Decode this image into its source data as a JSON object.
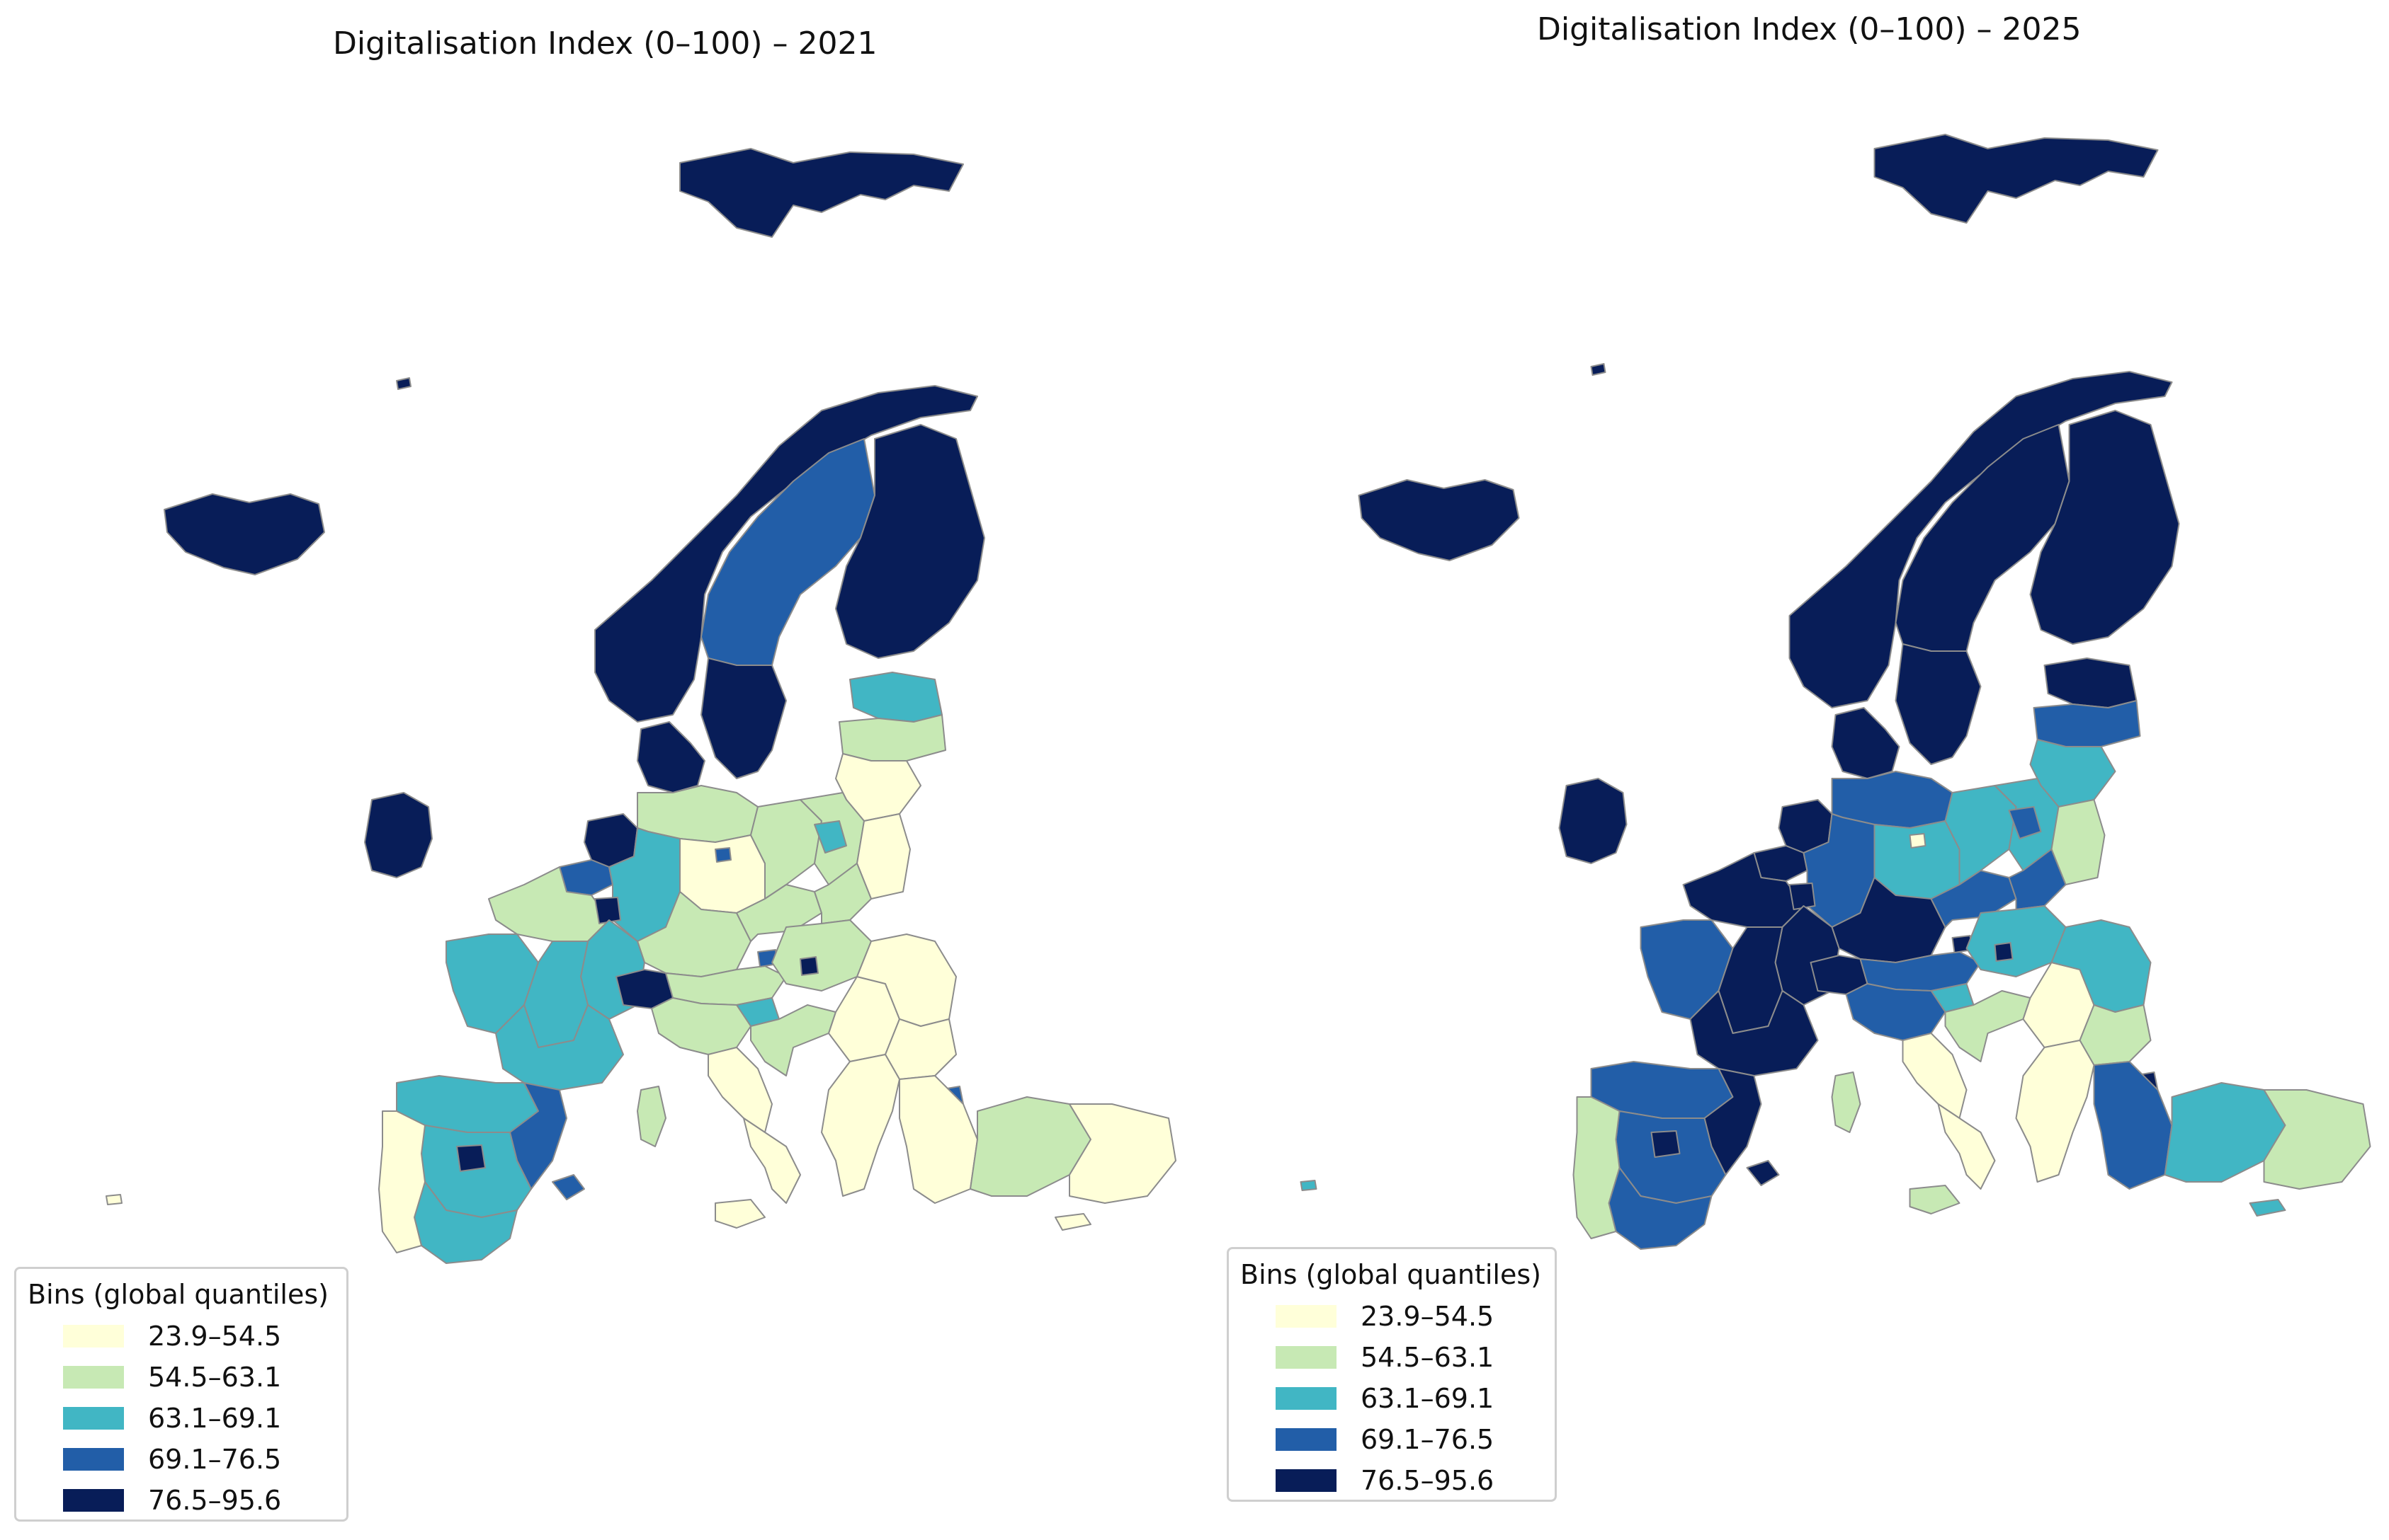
{
  "palette": {
    "bin1": "#ffffd9",
    "bin2": "#c7e9b4",
    "bin3": "#41b6c4",
    "bin4": "#225ea8",
    "bin5": "#081d58",
    "border": "#8c8c8c"
  },
  "legend": {
    "title": "Bins (global quantiles)",
    "bins": [
      {
        "label": "23.9–54.5",
        "color": "#ffffd9"
      },
      {
        "label": "54.5–63.1",
        "color": "#c7e9b4"
      },
      {
        "label": "63.1–69.1",
        "color": "#41b6c4"
      },
      {
        "label": "69.1–76.5",
        "color": "#225ea8"
      },
      {
        "label": "76.5–95.6",
        "color": "#081d58"
      }
    ]
  },
  "maps": [
    {
      "title": "Digitalisation Index (0–100) – 2021",
      "regions": {
        "svalbard": 5,
        "iceland": 5,
        "norway": 5,
        "sweden": 4,
        "sweden_south": 5,
        "finland": 5,
        "estonia": 3,
        "latvia": 2,
        "lithuania": 1,
        "denmark": 5,
        "ireland": 5,
        "netherlands": 5,
        "belgium": 4,
        "germany_north": 2,
        "germany_west": 3,
        "germany_east": 1,
        "germany_south": 2,
        "berlin": 4,
        "poland_west": 2,
        "poland_central": 2,
        "warsaw": 3,
        "poland_east": 1,
        "france_north": 2,
        "paris": 5,
        "france_east": 3,
        "france_west": 3,
        "france_central": 3,
        "france_south": 3,
        "switzerland": 5,
        "austria": 2,
        "vienna": 4,
        "czechia": 2,
        "slovakia": 2,
        "hungary": 2,
        "budapest": 5,
        "slovenia": 3,
        "croatia": 2,
        "italy_north": 2,
        "italy_central": 1,
        "italy_south": 1,
        "sardinia": 2,
        "sicily": 1,
        "spain_north": 3,
        "spain_central": 3,
        "madrid": 5,
        "catalonia": 4,
        "spain_south": 3,
        "balearics": 4,
        "portugal": 1,
        "romania": 1,
        "bulgaria": 1,
        "serbia": 1,
        "greece": 1,
        "turkey_west": 1,
        "turkey_central": 2,
        "turkey_east": 1,
        "istanbul": 4,
        "cyprus": 1,
        "faroe": 5,
        "azores": 1
      }
    },
    {
      "title": "Digitalisation Index (0–100) – 2025",
      "regions": {
        "svalbard": 5,
        "iceland": 5,
        "norway": 5,
        "sweden": 5,
        "sweden_south": 5,
        "finland": 5,
        "estonia": 5,
        "latvia": 4,
        "lithuania": 3,
        "denmark": 5,
        "ireland": 5,
        "netherlands": 5,
        "belgium": 5,
        "germany_north": 4,
        "germany_west": 4,
        "germany_east": 3,
        "germany_south": 5,
        "berlin": 1,
        "poland_west": 3,
        "poland_central": 3,
        "warsaw": 4,
        "poland_east": 2,
        "france_north": 5,
        "paris": 5,
        "france_east": 5,
        "france_west": 4,
        "france_central": 5,
        "france_south": 5,
        "switzerland": 5,
        "austria": 4,
        "vienna": 5,
        "czechia": 4,
        "slovakia": 4,
        "hungary": 3,
        "budapest": 5,
        "slovenia": 3,
        "croatia": 2,
        "italy_north": 4,
        "italy_central": 1,
        "italy_south": 1,
        "sardinia": 2,
        "sicily": 2,
        "spain_north": 4,
        "spain_central": 4,
        "madrid": 5,
        "catalonia": 5,
        "spain_south": 4,
        "balearics": 5,
        "portugal": 2,
        "romania": 3,
        "bulgaria": 2,
        "serbia": 1,
        "greece": 1,
        "turkey_west": 4,
        "turkey_central": 3,
        "turkey_east": 2,
        "istanbul": 5,
        "cyprus": 3,
        "faroe": 5,
        "azores": 3
      }
    }
  ]
}
